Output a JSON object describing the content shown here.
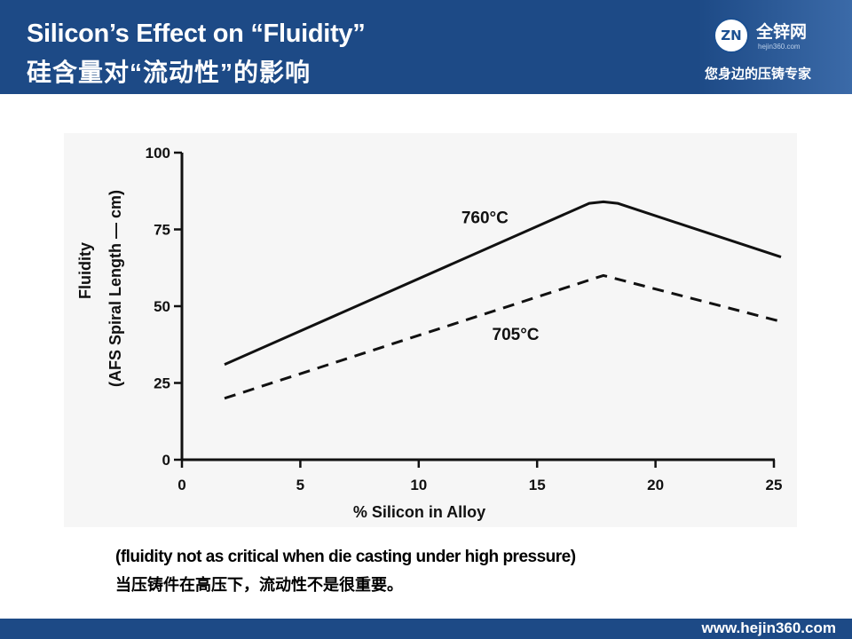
{
  "slide": {
    "title_en": "Silicon’s Effect on “Fluidity”",
    "title_cn": "硅含量对“流动性”的影响",
    "note_en": "(fluidity not as critical when die casting under high pressure)",
    "note_cn": "当压铸件在高压下，流动性不是很重要。",
    "header_color": "#1d4a86"
  },
  "logo": {
    "badge": "ZN",
    "name": "全锌网",
    "url": "hejin360.com",
    "slogan": "您身边的压铸专家"
  },
  "footer": {
    "url": "www.hejin360.com"
  },
  "chart_data": {
    "type": "line",
    "title": "",
    "xlabel": "% Silicon in Alloy",
    "ylabel": "Fluidity",
    "ylabel2": "(AFS Spiral Length — cm)",
    "xlim": [
      0,
      25
    ],
    "ylim": [
      0,
      100
    ],
    "xticks": [
      0,
      5,
      10,
      15,
      20,
      25
    ],
    "yticks": [
      0,
      25,
      50,
      75,
      100
    ],
    "grid": false,
    "series": [
      {
        "name": "760°C",
        "style": "solid",
        "color": "#111111",
        "x": [
          1.8,
          17.2,
          17.8,
          18.4,
          25.3
        ],
        "y": [
          31,
          83.5,
          84,
          83.5,
          66
        ]
      },
      {
        "name": "705°C",
        "style": "dashed",
        "color": "#111111",
        "x": [
          1.8,
          17.8,
          25.3
        ],
        "y": [
          20,
          60,
          45
        ]
      }
    ]
  }
}
